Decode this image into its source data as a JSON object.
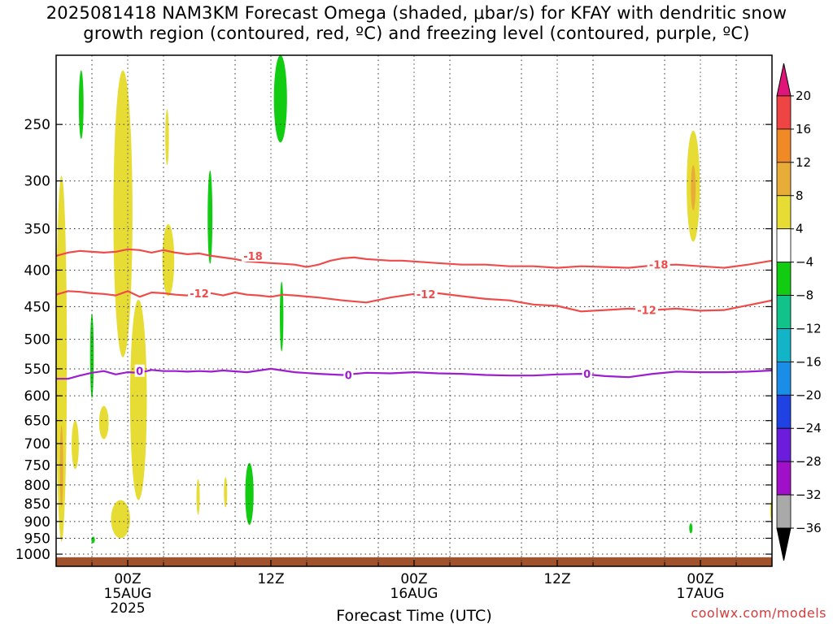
{
  "title_line1": "2025081418 NAM3KM Forecast Omega (shaded, μbar/s) for KFAY with dendritic snow",
  "title_line2": "growth region (contoured, red, ºC) and freezing level (contoured, purple, ºC)",
  "chart_data": {
    "type": "heatmap",
    "xlabel": "Forecast Time (UTC)",
    "credit": "coolwx.com/models",
    "y_axis": {
      "label": "",
      "scale": "log",
      "ylim_hpa": [
        1040,
        200
      ],
      "inverted": true,
      "ticks": [
        250,
        300,
        350,
        400,
        450,
        500,
        550,
        600,
        650,
        700,
        750,
        800,
        850,
        900,
        950,
        1000
      ]
    },
    "x_axis": {
      "units": "hours since 2025-08-14 18Z",
      "xlim": [
        0,
        60
      ],
      "ticks": [
        {
          "hour": 6,
          "lines": [
            "00Z",
            "15AUG",
            "2025"
          ]
        },
        {
          "hour": 18,
          "lines": [
            "12Z"
          ]
        },
        {
          "hour": 30,
          "lines": [
            "00Z",
            "16AUG"
          ]
        },
        {
          "hour": 42,
          "lines": [
            "12Z"
          ]
        },
        {
          "hour": 54,
          "lines": [
            "00Z",
            "17AUG"
          ]
        }
      ],
      "minor_grid_hours": [
        3,
        9,
        15,
        21,
        27,
        33,
        39,
        45,
        51,
        57
      ]
    },
    "grid": true,
    "colorbar": {
      "label_values": [
        20,
        16,
        12,
        8,
        4,
        -4,
        -8,
        -12,
        -16,
        -20,
        -24,
        -28,
        -32,
        -36
      ],
      "bins": [
        {
          "from": 20,
          "to": 24,
          "color": "#e0157a"
        },
        {
          "from": 16,
          "to": 20,
          "color": "#ee4444"
        },
        {
          "from": 12,
          "to": 16,
          "color": "#f08a27"
        },
        {
          "from": 8,
          "to": 12,
          "color": "#e8ad38"
        },
        {
          "from": 4,
          "to": 8,
          "color": "#e6dc33"
        },
        {
          "from": -4,
          "to": 4,
          "color": "#ffffff"
        },
        {
          "from": -8,
          "to": -4,
          "color": "#11cc11"
        },
        {
          "from": -12,
          "to": -8,
          "color": "#11c28a"
        },
        {
          "from": -16,
          "to": -12,
          "color": "#12b5c8"
        },
        {
          "from": -20,
          "to": -16,
          "color": "#1a8ee6"
        },
        {
          "from": -24,
          "to": -20,
          "color": "#2142e3"
        },
        {
          "from": -28,
          "to": -24,
          "color": "#6b1ddb"
        },
        {
          "from": -32,
          "to": -28,
          "color": "#9f10c8"
        },
        {
          "from": -36,
          "to": -32,
          "color": "#a9a9a9"
        },
        {
          "from": -40,
          "to": -36,
          "color": "#000000"
        }
      ]
    },
    "contours": [
      {
        "name": "-18",
        "color": "#ef4b4b",
        "x": [
          0,
          1,
          2,
          3,
          4,
          5,
          6,
          7,
          8,
          9,
          10,
          11,
          12,
          13,
          14,
          15,
          16,
          17,
          18,
          19,
          20,
          21,
          22,
          23,
          24,
          25,
          26,
          27,
          28,
          29,
          30,
          32,
          34,
          36,
          38,
          40,
          42,
          44,
          46,
          48,
          50,
          52,
          54,
          56,
          58,
          60
        ],
        "y": [
          382,
          378,
          376,
          377,
          378,
          377,
          374,
          375,
          378,
          375,
          378,
          380,
          379,
          382,
          384,
          386,
          389,
          390,
          391,
          392,
          393,
          396,
          393,
          388,
          385,
          384,
          386,
          387,
          388,
          388,
          389,
          391,
          393,
          393,
          395,
          395,
          397,
          395,
          396,
          397,
          394,
          393,
          395,
          397,
          393,
          388
        ],
        "label_points": [
          {
            "x": 16.5,
            "y": 382
          },
          {
            "x": 50.5,
            "y": 393
          }
        ]
      },
      {
        "name": "-12",
        "color": "#ef4b4b",
        "x": [
          0,
          1,
          2,
          3,
          4,
          5,
          6,
          7,
          8,
          9,
          10,
          11,
          12,
          13,
          14,
          15,
          16,
          17,
          18,
          19,
          20,
          22,
          24,
          26,
          28,
          30,
          32,
          34,
          36,
          38,
          40,
          42,
          44,
          46,
          48,
          50,
          52,
          54,
          56,
          58,
          60
        ],
        "y": [
          433,
          428,
          429,
          431,
          432,
          434,
          428,
          436,
          430,
          431,
          433,
          434,
          431,
          431,
          434,
          430,
          433,
          434,
          436,
          433,
          434,
          437,
          441,
          444,
          437,
          432,
          431,
          435,
          439,
          441,
          447,
          449,
          457,
          455,
          453,
          455,
          453,
          456,
          455,
          448,
          441
        ],
        "label_points": [
          {
            "x": 12,
            "y": 431
          },
          {
            "x": 31,
            "y": 432
          },
          {
            "x": 49.5,
            "y": 455
          }
        ]
      },
      {
        "name": "0",
        "color": "#9d1dcf",
        "x": [
          0,
          1,
          2,
          3,
          4,
          5,
          6,
          7,
          8,
          9,
          10,
          11,
          12,
          13,
          14,
          16,
          18,
          20,
          22,
          24,
          26,
          28,
          30,
          32,
          34,
          36,
          38,
          40,
          42,
          44,
          46,
          48,
          50,
          52,
          54,
          56,
          58,
          60
        ],
        "y": [
          568,
          568,
          562,
          557,
          554,
          560,
          556,
          557,
          552,
          554,
          554,
          555,
          554,
          555,
          553,
          556,
          550,
          556,
          559,
          561,
          557,
          558,
          556,
          558,
          559,
          561,
          562,
          562,
          560,
          559,
          563,
          565,
          559,
          555,
          556,
          556,
          555,
          553
        ],
        "label_points": [
          {
            "x": 7,
            "y": 554
          },
          {
            "x": 24.5,
            "y": 561
          },
          {
            "x": 44.5,
            "y": 559
          }
        ]
      }
    ],
    "omega_regions": [
      {
        "value": 5,
        "x_center": 0.45,
        "x_halfwidth": 0.45,
        "p_top": 295,
        "p_bottom": 960
      },
      {
        "value": 9,
        "x_center": 0.45,
        "x_halfwidth": 0.12,
        "p_top": 660,
        "p_bottom": 860
      },
      {
        "value": 5,
        "x_center": 1.6,
        "x_halfwidth": 0.3,
        "p_top": 650,
        "p_bottom": 760
      },
      {
        "value": -6,
        "x_center": 2.1,
        "x_halfwidth": 0.2,
        "p_top": 210,
        "p_bottom": 262
      },
      {
        "value": -6,
        "x_center": 3.0,
        "x_halfwidth": 0.15,
        "p_top": 460,
        "p_bottom": 605
      },
      {
        "value": 5,
        "x_center": 4.0,
        "x_halfwidth": 0.4,
        "p_top": 620,
        "p_bottom": 690
      },
      {
        "value": 5,
        "x_center": 5.6,
        "x_halfwidth": 0.8,
        "p_top": 210,
        "p_bottom": 530
      },
      {
        "value": 5,
        "x_center": 6.9,
        "x_halfwidth": 0.7,
        "p_top": 440,
        "p_bottom": 840
      },
      {
        "value": 5,
        "x_center": 5.4,
        "x_halfwidth": 0.8,
        "p_top": 840,
        "p_bottom": 950
      },
      {
        "value": -6,
        "x_center": 3.1,
        "x_halfwidth": 0.15,
        "p_top": 945,
        "p_bottom": 965
      },
      {
        "value": 5,
        "x_center": 9.3,
        "x_halfwidth": 0.15,
        "p_top": 238,
        "p_bottom": 285
      },
      {
        "value": 5,
        "x_center": 9.4,
        "x_halfwidth": 0.5,
        "p_top": 345,
        "p_bottom": 435
      },
      {
        "value": -6,
        "x_center": 12.9,
        "x_halfwidth": 0.2,
        "p_top": 290,
        "p_bottom": 392
      },
      {
        "value": 5,
        "x_center": 11.9,
        "x_halfwidth": 0.1,
        "p_top": 785,
        "p_bottom": 880
      },
      {
        "value": 5,
        "x_center": 14.2,
        "x_halfwidth": 0.1,
        "p_top": 780,
        "p_bottom": 860
      },
      {
        "value": -6,
        "x_center": 16.2,
        "x_halfwidth": 0.35,
        "p_top": 745,
        "p_bottom": 910
      },
      {
        "value": -6,
        "x_center": 18.8,
        "x_halfwidth": 0.55,
        "p_top": 200,
        "p_bottom": 265
      },
      {
        "value": -6,
        "x_center": 18.9,
        "x_halfwidth": 0.15,
        "p_top": 415,
        "p_bottom": 520
      },
      {
        "value": 5,
        "x_center": 53.4,
        "x_halfwidth": 0.55,
        "p_top": 255,
        "p_bottom": 365
      },
      {
        "value": 9,
        "x_center": 53.4,
        "x_halfwidth": 0.2,
        "p_top": 285,
        "p_bottom": 330
      },
      {
        "value": -6,
        "x_center": 53.2,
        "x_halfwidth": 0.12,
        "p_top": 905,
        "p_bottom": 935
      },
      {
        "value": 5,
        "x_center": 60,
        "x_halfwidth": 0.15,
        "p_top": 840,
        "p_bottom": 900
      }
    ],
    "terrain": {
      "color": "#a0522d",
      "p_top": 1010
    }
  }
}
